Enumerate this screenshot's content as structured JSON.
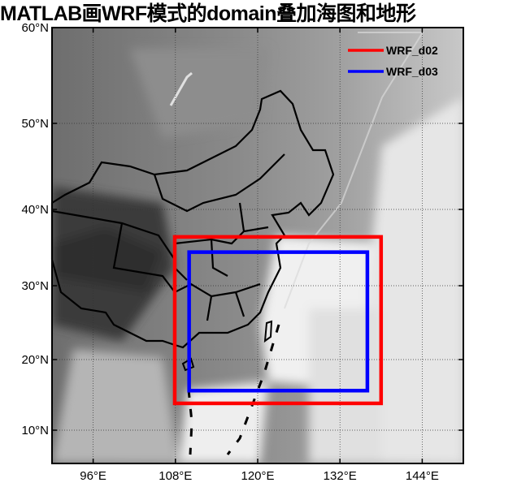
{
  "title": "MATLAB画WRF模式的domain叠加海图和地形",
  "map": {
    "projection": "cylindrical (mercator-like)",
    "lon_range": [
      90,
      150
    ],
    "lat_range": [
      5,
      60
    ],
    "grid": true,
    "colormap": "grayscale terrain/bathymetry",
    "lat_ticks": [
      {
        "value": 60,
        "label": "60°N"
      },
      {
        "value": 50,
        "label": "50°N"
      },
      {
        "value": 40,
        "label": "40°N"
      },
      {
        "value": 30,
        "label": "30°N"
      },
      {
        "value": 20,
        "label": "20°N"
      },
      {
        "value": 10,
        "label": "10°N"
      }
    ],
    "lon_ticks": [
      {
        "value": 96,
        "label": "96°E"
      },
      {
        "value": 108,
        "label": "108°E"
      },
      {
        "value": 120,
        "label": "120°E"
      },
      {
        "value": 132,
        "label": "132°E"
      },
      {
        "value": 144,
        "label": "144°E"
      }
    ]
  },
  "legend": {
    "placement": "top-right",
    "items": [
      {
        "label": "WRF_d02",
        "color": "#ff0000"
      },
      {
        "label": "WRF_d03",
        "color": "#0000ff"
      }
    ]
  },
  "domains": [
    {
      "name": "WRF_d02",
      "color": "#ff0000",
      "lon": [
        107.9,
        138.0
      ],
      "lat": [
        13.8,
        36.4
      ]
    },
    {
      "name": "WRF_d03",
      "color": "#0000ff",
      "lon": [
        110.0,
        136.0
      ],
      "lat": [
        15.6,
        34.4
      ]
    }
  ]
}
